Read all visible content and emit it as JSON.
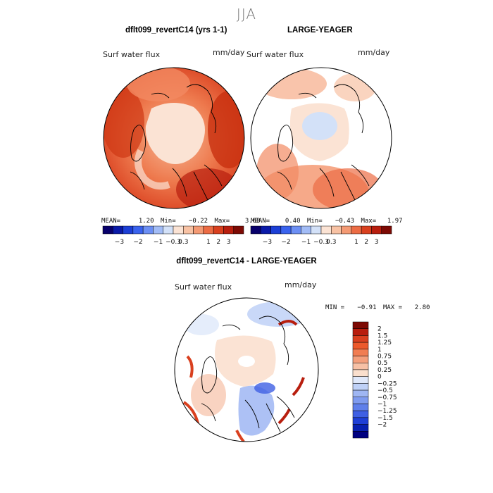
{
  "season": "JJA",
  "panel1": {
    "title": "dflt099_revertC14 (yrs 1-1)",
    "variable": "Surf water flux",
    "units": "mm/day",
    "mean_label": "MEAN=",
    "mean": "1.20",
    "min_label": "Min=",
    "min": "−0.22",
    "max_label": "Max=",
    "max": "3.68"
  },
  "panel2": {
    "title": "LARGE-YEAGER",
    "variable": "Surf water flux",
    "units": "mm/day",
    "mean_label": "MEAN=",
    "mean": "0.40",
    "min_label": "Min=",
    "min": "−0.43",
    "max_label": "Max=",
    "max": "1.97"
  },
  "panel3": {
    "title": "dflt099_revertC14 - LARGE-YEAGER",
    "variable": "Surf water flux",
    "units": "mm/day",
    "min_label": "MIN =",
    "min": "−0.91",
    "max_label": "MAX =",
    "max": "2.80"
  },
  "top_colorbar": {
    "colors": [
      "#08006b",
      "#0a1aa8",
      "#1c3fd6",
      "#3a63ee",
      "#6c8ff4",
      "#a2bcf6",
      "#d3e1f8",
      "#fbe3d4",
      "#f8c2a4",
      "#f49a74",
      "#ec6c44",
      "#d9401f",
      "#b81e0e",
      "#7d0a04"
    ],
    "tick_labels": [
      "−3",
      "−2",
      "−1",
      "−0.3",
      "0.3",
      "1",
      "2",
      "3"
    ]
  },
  "bottom_colorbar": {
    "colors": [
      "#7d0a04",
      "#b81e0e",
      "#d9401f",
      "#ec5a2c",
      "#f17d52",
      "#f49f7c",
      "#f7c1a6",
      "#fadfcd",
      "#dfe8fa",
      "#bfd1f7",
      "#9fb6f3",
      "#7f9bef",
      "#5f7fea",
      "#3f5fe3",
      "#1f3fd6",
      "#0820b0",
      "#000080"
    ],
    "tick_labels": [
      "2",
      "1.5",
      "1.25",
      "1",
      "0.75",
      "0.5",
      "0.25",
      "0",
      "−0.25",
      "−0.5",
      "−0.75",
      "−1",
      "−1.25",
      "−1.5",
      "−2"
    ]
  }
}
